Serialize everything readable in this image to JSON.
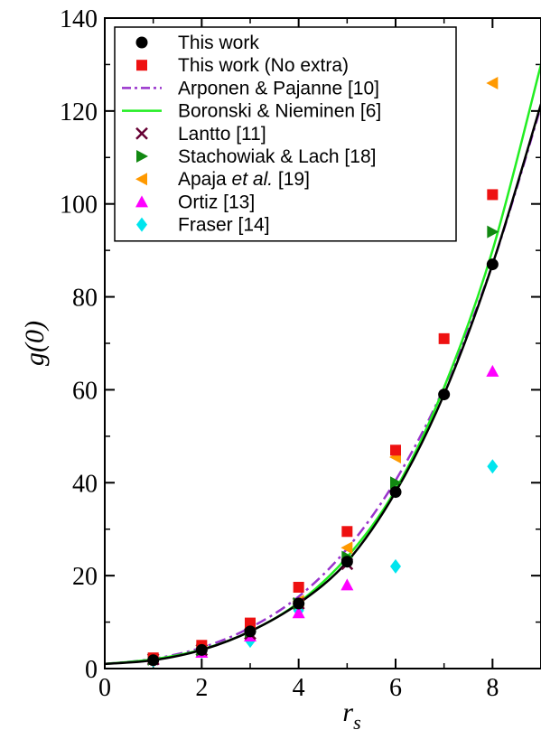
{
  "chart_data": {
    "type": "scatter",
    "xlabel": "r",
    "xlabel_subscript": "s",
    "ylabel": "g(0)",
    "xlim": [
      0,
      9
    ],
    "ylim": [
      0,
      140
    ],
    "xticks": [
      0,
      2,
      4,
      6,
      8
    ],
    "yticks": [
      0,
      20,
      40,
      60,
      80,
      100,
      120,
      140
    ],
    "legend": "top-left",
    "series": [
      {
        "name": "This work",
        "kind": "points",
        "marker": "circle",
        "color": "#000000",
        "x": [
          1,
          2,
          3,
          4,
          5,
          6,
          7,
          8
        ],
        "y": [
          1.8,
          4.0,
          8.0,
          14.0,
          23.0,
          38.0,
          59.0,
          87.0
        ]
      },
      {
        "name": "This work (No extra)",
        "kind": "points",
        "marker": "square",
        "color": "#ee1111",
        "x": [
          1,
          2,
          3,
          4,
          5,
          6,
          7,
          8
        ],
        "y": [
          2.3,
          5.0,
          9.8,
          17.5,
          29.5,
          47.0,
          71.0,
          102.0
        ]
      },
      {
        "name": "Arponen & Pajanne [10]",
        "kind": "line",
        "dash": "dashdot",
        "color": "#9933cc",
        "x": [
          0,
          1,
          2,
          3,
          4,
          5,
          6,
          7,
          8,
          9
        ],
        "y": [
          1.0,
          2.1,
          4.5,
          8.8,
          15.5,
          25.8,
          40.5,
          60.5,
          87.0,
          121.0
        ]
      },
      {
        "name": "Boronski & Nieminen [6]",
        "kind": "line",
        "dash": "solid",
        "color": "#22ee22",
        "x": [
          0,
          1,
          2,
          3,
          4,
          5,
          6,
          7,
          8,
          9
        ],
        "y": [
          1.0,
          2.0,
          4.1,
          8.0,
          14.2,
          24.0,
          38.5,
          60.5,
          90.0,
          130.0
        ]
      },
      {
        "name": "Lantto [11]",
        "kind": "points",
        "marker": "cross",
        "color": "#660033",
        "x": [
          1,
          2,
          3,
          4,
          5
        ],
        "y": [
          2.0,
          4.0,
          7.5,
          14.0,
          22.5
        ]
      },
      {
        "name": "Stachowiak & Lach [18]",
        "kind": "points",
        "marker": "triangle-right",
        "color": "#118811",
        "x": [
          1,
          2,
          3,
          4,
          5,
          6,
          8
        ],
        "y": [
          2.0,
          4.0,
          8.0,
          14.0,
          24.0,
          40.0,
          94.0
        ]
      },
      {
        "name": "Apaja et al. [19]",
        "name_plain": "Apaja ",
        "name_italic": "et al.",
        "name_tail": " [19]",
        "kind": "points",
        "marker": "triangle-left",
        "color": "#ff9900",
        "x": [
          4,
          5,
          6,
          8
        ],
        "y": [
          14.5,
          26.0,
          45.5,
          126.0
        ]
      },
      {
        "name": "Ortiz [13]",
        "kind": "points",
        "marker": "triangle-up",
        "color": "#ff00ff",
        "x": [
          1,
          2,
          3,
          4,
          5,
          8
        ],
        "y": [
          2.0,
          3.5,
          7.0,
          12.0,
          18.0,
          64.0
        ]
      },
      {
        "name": "Fraser [14]",
        "kind": "points",
        "marker": "diamond",
        "color": "#00e5ee",
        "x": [
          1,
          2,
          3,
          4,
          6,
          8
        ],
        "y": [
          1.8,
          3.7,
          6.0,
          12.5,
          22.0,
          43.5
        ]
      }
    ]
  }
}
